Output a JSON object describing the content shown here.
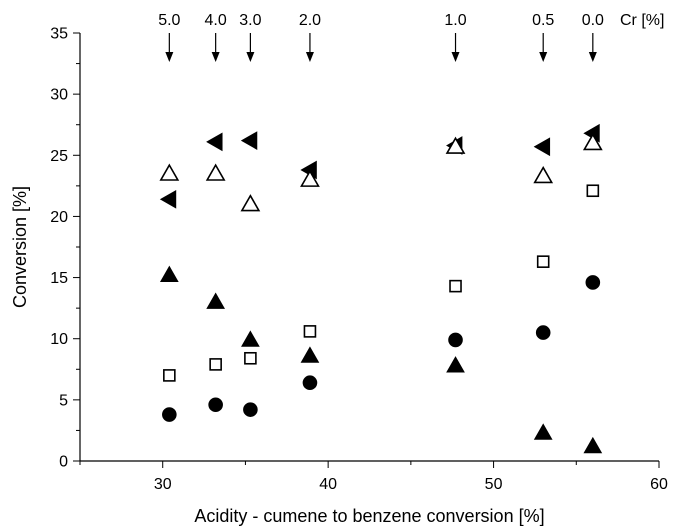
{
  "chart_data": {
    "type": "scatter",
    "xlabel": "Acidity - cumene to benzene conversion [%]",
    "ylabel": "Conversion [%]",
    "xlim": [
      25,
      60
    ],
    "ylim": [
      0,
      35
    ],
    "xticks": [
      30,
      40,
      50,
      60
    ],
    "yticks": [
      0,
      5,
      10,
      15,
      20,
      25,
      30,
      35
    ],
    "grid": false,
    "legend": "none",
    "top_axis": {
      "unit_label": "Cr  [%]",
      "markers": [
        {
          "label": "5.0",
          "x": 30.4
        },
        {
          "label": "4.0",
          "x": 33.2
        },
        {
          "label": "3.0",
          "x": 35.3
        },
        {
          "label": "2.0",
          "x": 38.9
        },
        {
          "label": "1.0",
          "x": 47.7
        },
        {
          "label": "0.5",
          "x": 53.0
        },
        {
          "label": "0.0",
          "x": 56.0
        }
      ]
    },
    "series": [
      {
        "marker": "filled-triangle-left",
        "x": [
          30.4,
          33.2,
          35.3,
          38.9,
          47.7,
          53.0,
          56.0
        ],
        "y": [
          21.4,
          26.1,
          26.2,
          23.8,
          25.8,
          25.7,
          26.8
        ]
      },
      {
        "marker": "open-triangle-up",
        "x": [
          30.4,
          33.2,
          35.3,
          38.9,
          47.7,
          53.0,
          56.0
        ],
        "y": [
          23.5,
          23.5,
          21.0,
          23.0,
          25.7,
          23.3,
          26.0
        ]
      },
      {
        "marker": "filled-triangle-up",
        "x": [
          30.4,
          33.2,
          35.3,
          38.9,
          47.7,
          53.0,
          56.0
        ],
        "y": [
          15.2,
          13.0,
          9.9,
          8.6,
          7.8,
          2.3,
          1.2
        ]
      },
      {
        "marker": "open-square",
        "x": [
          30.4,
          33.2,
          35.3,
          38.9,
          47.7,
          53.0,
          56.0
        ],
        "y": [
          7.0,
          7.9,
          8.4,
          10.6,
          14.3,
          16.3,
          22.1
        ]
      },
      {
        "marker": "filled-circle",
        "x": [
          30.4,
          33.2,
          35.3,
          38.9,
          47.7,
          53.0,
          56.0
        ],
        "y": [
          3.8,
          4.6,
          4.2,
          6.4,
          9.9,
          10.5,
          14.6
        ]
      }
    ]
  }
}
